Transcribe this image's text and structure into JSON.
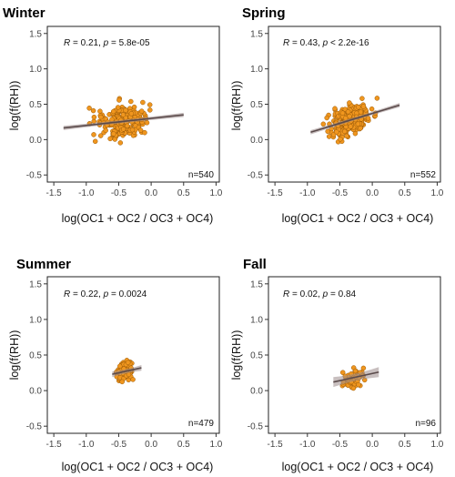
{
  "chart_data": [
    {
      "type": "scatter",
      "title": "Winter",
      "xlabel": "log(OC1 + OC2 / OC3 + OC4)",
      "ylabel": "log(f(RH))",
      "xlim": [
        -1.6,
        1.05
      ],
      "ylim": [
        -0.6,
        1.6
      ],
      "xticks": [
        "-1.5",
        "-1.0",
        "-0.5",
        "0.0",
        "0.5",
        "1.0"
      ],
      "yticks": [
        "-0.5",
        "0.0",
        "0.5",
        "1.0",
        "1.5"
      ],
      "stat": {
        "R": "0.21",
        "p": "5.8e-05"
      },
      "n_label": "n=540",
      "point_color": "#f0961e",
      "fit": {
        "x0": -1.35,
        "x1": 0.5,
        "intercept": 0.3,
        "slope": 0.1,
        "band": 0.03
      },
      "cloud": {
        "cx": -0.45,
        "sx": 0.38,
        "xmin": -1.4,
        "xmax": 0.6,
        "noise": 0.2,
        "count": 220,
        "seed": 11
      }
    },
    {
      "type": "scatter",
      "title": "Spring",
      "xlabel": "log(OC1 + OC2 / OC3 + OC4)",
      "ylabel": "log(f(RH))",
      "xlim": [
        -1.6,
        1.05
      ],
      "ylim": [
        -0.6,
        1.6
      ],
      "xticks": [
        "-1.5",
        "-1.0",
        "-0.5",
        "0.0",
        "0.5",
        "1.0"
      ],
      "yticks": [
        "-0.5",
        "0.0",
        "0.5",
        "1.0",
        "1.5"
      ],
      "stat": {
        "R": "0.43",
        "p": "< 2.2e-16"
      },
      "n_label": "n=552",
      "point_color": "#f0961e",
      "fit": {
        "x0": -0.95,
        "x1": 0.42,
        "intercept": 0.37,
        "slope": 0.28,
        "band": 0.03
      },
      "cloud": {
        "cx": -0.35,
        "sx": 0.3,
        "xmin": -0.95,
        "xmax": 0.45,
        "noise": 0.17,
        "count": 260,
        "seed": 23
      }
    },
    {
      "type": "scatter",
      "title": "Summer",
      "xlabel": "log(OC1 + OC2 / OC3 + OC4)",
      "ylabel": "log(f(RH))",
      "xlim": [
        -1.6,
        1.05
      ],
      "ylim": [
        -0.6,
        1.6
      ],
      "xticks": [
        "-1.5",
        "-1.0",
        "-0.5",
        "0.0",
        "0.5",
        "1.0"
      ],
      "yticks": [
        "-0.5",
        "0.0",
        "0.5",
        "1.0",
        "1.5"
      ],
      "stat": {
        "R": "0.22",
        "p": "0.0024"
      },
      "n_label": "n=479",
      "point_color": "#f0961e",
      "fit": {
        "x0": -0.6,
        "x1": -0.15,
        "intercept": 0.35,
        "slope": 0.2,
        "band": 0.04
      },
      "cloud": {
        "cx": -0.4,
        "sx": 0.12,
        "xmin": -0.62,
        "xmax": -0.12,
        "noise": 0.11,
        "count": 110,
        "seed": 37
      }
    },
    {
      "type": "scatter",
      "title": "Fall",
      "xlabel": "log(OC1 + OC2 / OC3 + OC4)",
      "ylabel": "log(f(RH))",
      "xlim": [
        -1.6,
        1.05
      ],
      "ylim": [
        -0.6,
        1.6
      ],
      "xticks": [
        "-1.5",
        "-1.0",
        "-0.5",
        "0.0",
        "0.5",
        "1.0"
      ],
      "yticks": [
        "-0.5",
        "0.0",
        "0.5",
        "1.0",
        "1.5"
      ],
      "stat": {
        "R": "0.02",
        "p": "0.84"
      },
      "n_label": "n=96",
      "point_color": "#f0961e",
      "fit": {
        "x0": -0.6,
        "x1": 0.1,
        "intercept": 0.24,
        "slope": 0.2,
        "band": 0.07
      },
      "cloud": {
        "cx": -0.3,
        "sx": 0.15,
        "xmin": -0.62,
        "xmax": 0.05,
        "noise": 0.13,
        "count": 60,
        "seed": 53
      }
    }
  ]
}
